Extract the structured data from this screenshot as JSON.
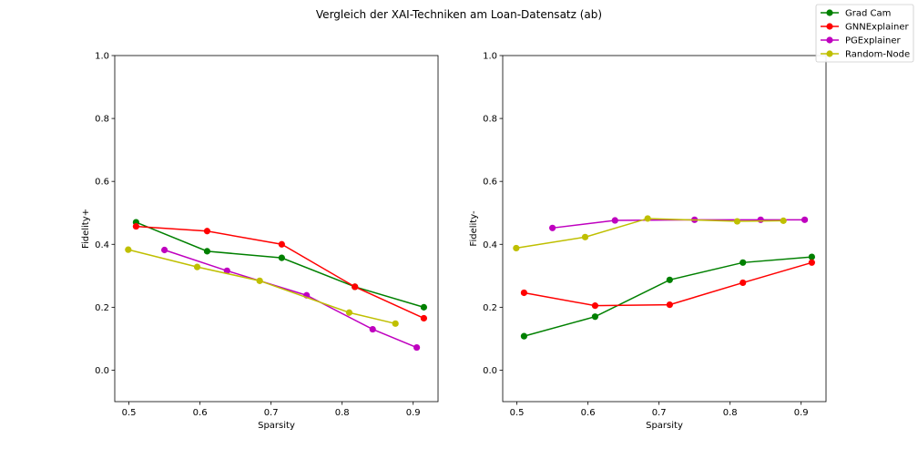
{
  "figure": {
    "title": "Vergleich der XAI-Techniken am Loan-Datensatz (ab)"
  },
  "legend": {
    "placement": "top-right",
    "entries": [
      {
        "name": "Grad Cam",
        "color": "#008000"
      },
      {
        "name": "GNNExplainer",
        "color": "#ff0000"
      },
      {
        "name": "PGExplainer",
        "color": "#bf00bf"
      },
      {
        "name": "Random-Node",
        "color": "#bfbf00"
      }
    ]
  },
  "chart_data": [
    {
      "type": "line",
      "xlabel": "Sparsity",
      "ylabel": "Fidelity+",
      "xlim": [
        0.48,
        0.935
      ],
      "ylim": [
        -0.1,
        1.0
      ],
      "xticks": [
        "0.5",
        "0.6",
        "0.7",
        "0.8",
        "0.9"
      ],
      "yticks": [
        "0.0",
        "0.2",
        "0.4",
        "0.6",
        "0.8",
        "1.0"
      ],
      "grid": false,
      "series": [
        {
          "name": "Grad Cam",
          "color": "#008000",
          "x": [
            0.51,
            0.61,
            0.715,
            0.818,
            0.915
          ],
          "y": [
            0.47,
            0.378,
            0.357,
            0.265,
            0.2
          ]
        },
        {
          "name": "GNNExplainer",
          "color": "#ff0000",
          "x": [
            0.51,
            0.61,
            0.715,
            0.818,
            0.915
          ],
          "y": [
            0.457,
            0.442,
            0.4,
            0.265,
            0.165
          ]
        },
        {
          "name": "PGExplainer",
          "color": "#bf00bf",
          "x": [
            0.55,
            0.638,
            0.75,
            0.843,
            0.905
          ],
          "y": [
            0.382,
            0.316,
            0.238,
            0.13,
            0.072
          ]
        },
        {
          "name": "Random-Node",
          "color": "#bfbf00",
          "x": [
            0.499,
            0.596,
            0.684,
            0.81,
            0.875
          ],
          "y": [
            0.383,
            0.328,
            0.284,
            0.183,
            0.148
          ]
        }
      ]
    },
    {
      "type": "line",
      "xlabel": "Sparsity",
      "ylabel": "Fidelity-",
      "xlim": [
        0.48,
        0.935
      ],
      "ylim": [
        -0.1,
        1.0
      ],
      "xticks": [
        "0.5",
        "0.6",
        "0.7",
        "0.8",
        "0.9"
      ],
      "yticks": [
        "0.0",
        "0.2",
        "0.4",
        "0.6",
        "0.8",
        "1.0"
      ],
      "grid": false,
      "series": [
        {
          "name": "Grad Cam",
          "color": "#008000",
          "x": [
            0.51,
            0.61,
            0.715,
            0.818,
            0.915
          ],
          "y": [
            0.108,
            0.17,
            0.287,
            0.342,
            0.36
          ]
        },
        {
          "name": "GNNExplainer",
          "color": "#ff0000",
          "x": [
            0.51,
            0.61,
            0.715,
            0.818,
            0.915
          ],
          "y": [
            0.246,
            0.205,
            0.208,
            0.278,
            0.342
          ]
        },
        {
          "name": "PGExplainer",
          "color": "#bf00bf",
          "x": [
            0.55,
            0.638,
            0.75,
            0.843,
            0.905
          ],
          "y": [
            0.452,
            0.476,
            0.478,
            0.478,
            0.478
          ]
        },
        {
          "name": "Random-Node",
          "color": "#bfbf00",
          "x": [
            0.499,
            0.596,
            0.684,
            0.81,
            0.875
          ],
          "y": [
            0.388,
            0.423,
            0.482,
            0.473,
            0.475
          ]
        }
      ]
    }
  ]
}
